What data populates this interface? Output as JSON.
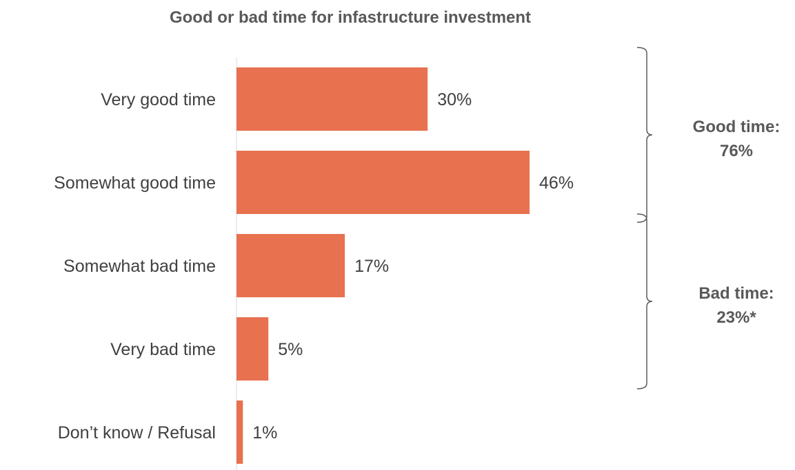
{
  "chart_data": {
    "type": "bar",
    "orientation": "horizontal",
    "title": "Good or bad time for infastructure investment",
    "categories": [
      "Very good time",
      "Somewhat good time",
      "Somewhat bad time",
      "Very bad time",
      "Don’t know / Refusal"
    ],
    "values": [
      30,
      46,
      17,
      5,
      1
    ],
    "value_labels": [
      "30%",
      "46%",
      "17%",
      "5%",
      "1%"
    ],
    "xlim": [
      0,
      60
    ],
    "grid": false,
    "bar_color": "#E8714F",
    "groups": [
      {
        "line1": "Good time:",
        "line2": "76%",
        "categories": [
          "Very good time",
          "Somewhat good time"
        ]
      },
      {
        "line1": "Bad time:",
        "line2": "23%*",
        "categories": [
          "Somewhat bad time",
          "Very bad time"
        ]
      }
    ]
  }
}
